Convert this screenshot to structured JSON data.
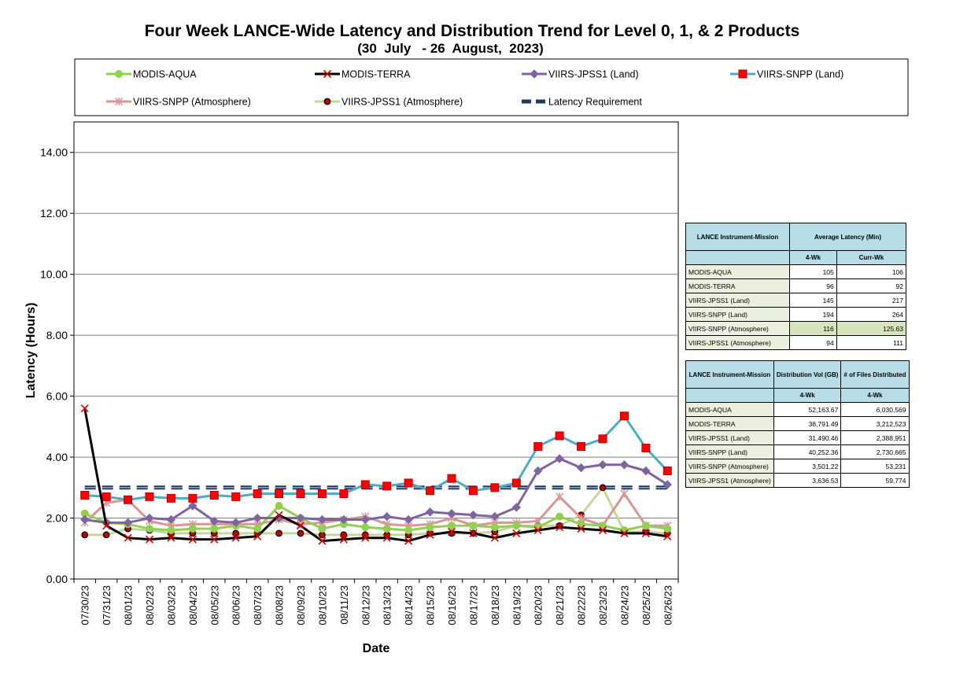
{
  "chart_data": {
    "type": "line",
    "title": "Four Week LANCE-Wide Latency and Distribution Trend for Level 0, 1, & 2 Products",
    "subtitle": "(30  July   - 26  August,  2023)",
    "xlabel": "Date",
    "ylabel": "Latency (Hours)",
    "ylim": [
      0,
      15
    ],
    "yticks": [
      "0.00",
      "2.00",
      "4.00",
      "6.00",
      "8.00",
      "10.00",
      "12.00",
      "14.00"
    ],
    "grid": true,
    "legend": "top",
    "categories": [
      "07/30/23",
      "07/31/23",
      "08/01/23",
      "08/02/23",
      "08/03/23",
      "08/04/23",
      "08/05/23",
      "08/06/23",
      "08/07/23",
      "08/08/23",
      "08/09/23",
      "08/10/23",
      "08/11/23",
      "08/12/23",
      "08/13/23",
      "08/14/23",
      "08/15/23",
      "08/16/23",
      "08/17/23",
      "08/18/23",
      "08/19/23",
      "08/20/23",
      "08/21/23",
      "08/22/23",
      "08/23/23",
      "08/24/23",
      "08/25/23",
      "08/26/23"
    ],
    "series": [
      {
        "name": "MODIS-AQUA",
        "color": "#92d050",
        "marker": "circle",
        "values": [
          2.15,
          1.85,
          1.8,
          1.65,
          1.6,
          1.65,
          1.65,
          1.75,
          1.65,
          2.4,
          2.0,
          1.65,
          1.8,
          1.7,
          1.65,
          1.6,
          1.7,
          1.75,
          1.75,
          1.7,
          1.75,
          1.7,
          2.05,
          1.8,
          1.75,
          1.6,
          1.75,
          1.65
        ]
      },
      {
        "name": "MODIS-TERRA",
        "color": "#000000",
        "marker": "x",
        "values": [
          5.6,
          1.75,
          1.35,
          1.3,
          1.35,
          1.3,
          1.3,
          1.35,
          1.4,
          2.1,
          1.75,
          1.25,
          1.3,
          1.35,
          1.35,
          1.25,
          1.45,
          1.55,
          1.5,
          1.35,
          1.5,
          1.6,
          1.7,
          1.65,
          1.6,
          1.5,
          1.5,
          1.4
        ]
      },
      {
        "name": "VIIRS-JPSS1 (Land)",
        "color": "#8064a2",
        "marker": "diamond",
        "values": [
          1.95,
          1.85,
          1.85,
          2.0,
          1.95,
          2.4,
          1.9,
          1.85,
          2.0,
          2.0,
          2.0,
          1.95,
          1.95,
          1.95,
          2.05,
          1.95,
          2.2,
          2.15,
          2.1,
          2.05,
          2.35,
          3.55,
          3.95,
          3.65,
          3.75,
          3.75,
          3.55,
          3.1
        ]
      },
      {
        "name": "VIIRS-SNPP (Land)",
        "color": "#4bacc6",
        "marker": "square",
        "values": [
          2.75,
          2.7,
          2.6,
          2.7,
          2.65,
          2.65,
          2.75,
          2.7,
          2.8,
          2.8,
          2.8,
          2.8,
          2.8,
          3.1,
          3.05,
          3.15,
          2.9,
          3.3,
          2.9,
          3.0,
          3.15,
          4.35,
          4.7,
          4.35,
          4.6,
          5.35,
          4.3,
          3.55
        ]
      },
      {
        "name": "VIIRS-SNPP (Atmosphere)",
        "color": "#d99694",
        "marker": "asterisk",
        "values": [
          1.85,
          2.5,
          2.6,
          1.9,
          1.75,
          1.8,
          1.8,
          1.8,
          1.8,
          1.95,
          1.8,
          1.85,
          1.95,
          2.05,
          1.8,
          1.75,
          1.8,
          2.0,
          1.75,
          1.85,
          1.85,
          1.9,
          2.7,
          2.0,
          1.75,
          2.8,
          1.75,
          1.75
        ]
      },
      {
        "name": "VIIRS-JPSS1 (Atmosphere)",
        "color": "#c4d79b",
        "marker": "dot",
        "values": [
          1.45,
          1.45,
          1.65,
          1.6,
          1.5,
          1.5,
          1.5,
          1.5,
          1.5,
          1.5,
          1.5,
          1.45,
          1.45,
          1.45,
          1.45,
          1.45,
          1.5,
          1.5,
          1.5,
          1.55,
          1.75,
          1.75,
          1.75,
          2.1,
          3.0,
          1.55,
          1.55,
          1.5
        ]
      },
      {
        "name": "Latency Requirement",
        "color": "#1f3864",
        "marker": "dash",
        "values": [
          3,
          3,
          3,
          3,
          3,
          3,
          3,
          3,
          3,
          3,
          3,
          3,
          3,
          3,
          3,
          3,
          3,
          3,
          3,
          3,
          3,
          3,
          3,
          3,
          3,
          3,
          3,
          3
        ]
      }
    ]
  },
  "latency_table": {
    "headers": [
      "LANCE Instrument-Mission",
      "Average Latency (Min)",
      "4-Wk",
      "Curr-Wk"
    ],
    "rows": [
      {
        "name": "MODIS-AQUA",
        "wk4": "105",
        "curr": "106"
      },
      {
        "name": "MODIS-TERRA",
        "wk4": "96",
        "curr": "92"
      },
      {
        "name": "VIIRS-JPSS1 (Land)",
        "wk4": "145",
        "curr": "217"
      },
      {
        "name": "VIIRS-SNPP (Land)",
        "wk4": "194",
        "curr": "264"
      },
      {
        "name": "VIIRS-SNPP (Atmosphere)",
        "wk4": "116",
        "curr": "125.63"
      },
      {
        "name": "VIIRS-JPSS1 (Atmosphere)",
        "wk4": "94",
        "curr": "111"
      }
    ]
  },
  "distribution_table": {
    "headers": [
      "LANCE Instrument-Mission",
      "Distribution Vol (GB)",
      "# of Files Distributed",
      "4-Wk",
      "4-Wk"
    ],
    "rows": [
      {
        "name": "MODIS-AQUA",
        "vol": "52,163.67",
        "files": "6,030,569"
      },
      {
        "name": "MODIS-TERRA",
        "vol": "38,791.49",
        "files": "3,212,523"
      },
      {
        "name": "VIIRS-JPSS1 (Land)",
        "vol": "31,490.46",
        "files": "2,388,951"
      },
      {
        "name": "VIIRS-SNPP (Land)",
        "vol": "40,252.36",
        "files": "2,730,665"
      },
      {
        "name": "VIIRS-SNPP (Atmosphere)",
        "vol": "3,501.22",
        "files": "53,231"
      },
      {
        "name": "VIIRS-JPSS1 (Atmosphere)",
        "vol": "3,636.53",
        "files": "59,774"
      }
    ]
  }
}
